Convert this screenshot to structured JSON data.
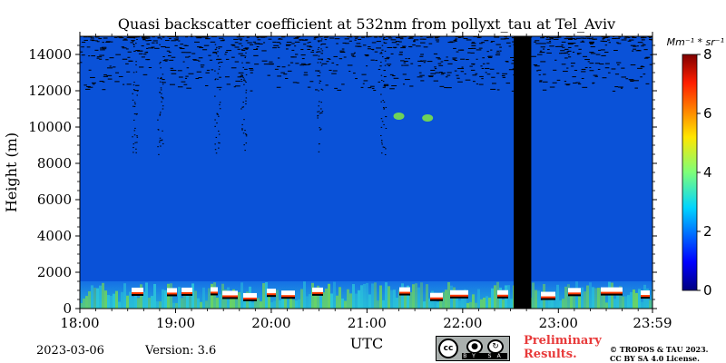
{
  "chart_data": {
    "type": "heatmap",
    "title": "Quasi backscatter coefficient at 532nm from pollyxt_tau at Tel_Aviv",
    "xlabel": "UTC",
    "ylabel": "Height (m)",
    "x_range": [
      "18:00",
      "23:59"
    ],
    "y_range": [
      0,
      15000
    ],
    "x_tick_labels": [
      "18:00",
      "19:00",
      "20:00",
      "21:00",
      "22:00",
      "23:00",
      "23:59"
    ],
    "y_tick_labels": [
      "0",
      "2000",
      "4000",
      "6000",
      "8000",
      "10000",
      "12000",
      "14000"
    ],
    "y_tick_values": [
      0,
      2000,
      4000,
      6000,
      8000,
      10000,
      12000,
      14000
    ],
    "colorbar": {
      "unit_label": "Mm⁻¹ * sr⁻¹",
      "min": 0,
      "max": 8,
      "tick_labels": [
        "0",
        "2",
        "4",
        "6",
        "8"
      ],
      "tick_values": [
        0,
        2,
        4,
        6,
        8
      ],
      "colormap": "jet"
    },
    "no_data_gap": {
      "start": "22:32",
      "end": "22:43"
    },
    "background_value": 0.6,
    "boundary_layer_top_m": 1500,
    "features": [
      {
        "name": "high-altitude cloud",
        "time": "21:20",
        "height_m": 10600,
        "value": 3.0
      },
      {
        "name": "high-altitude cloud",
        "time": "21:38",
        "height_m": 10500,
        "value": 2.2
      }
    ],
    "grid": false
  },
  "footer": {
    "date": "2023-03-06",
    "version": "Version: 3.6",
    "license_badge": {
      "cc": "cc",
      "strip": "BY SA"
    },
    "preliminary_line1": "Preliminary",
    "preliminary_line2": "Results.",
    "copyright_line1": "© TROPOS & TAU 2023.",
    "copyright_line2": "CC BY SA 4.0 License."
  },
  "colors": {
    "background_blue": "#0a52d8",
    "nodata": "#000000",
    "boundary_cyan": "#2fd2d8",
    "aerosol_green": "#7ae04a",
    "cloud_white": "#ffffff",
    "preliminary_red": "#e83a3a"
  }
}
